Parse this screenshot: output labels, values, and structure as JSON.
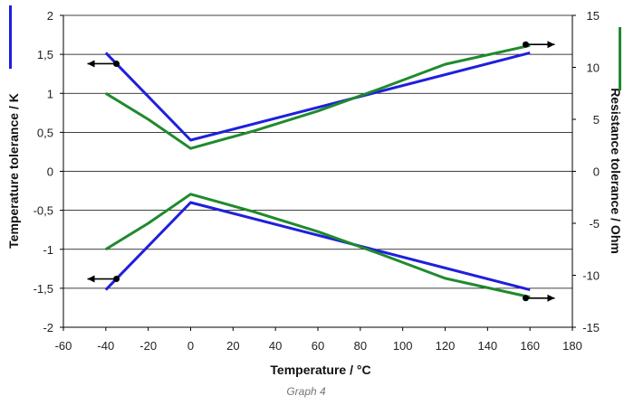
{
  "chart_data": {
    "type": "line",
    "caption": "Graph 4",
    "xlabel": "Temperature / °C",
    "ylabel_left": "Temperature tolerance / K",
    "ylabel_right": "Resistance tolerance / Ohm",
    "xlim": [
      -60,
      180
    ],
    "ylim_left": [
      -2,
      2
    ],
    "ylim_right": [
      -15,
      15
    ],
    "x_ticks": [
      "-60",
      "-40",
      "-20",
      "0",
      "20",
      "40",
      "60",
      "80",
      "100",
      "120",
      "140",
      "160",
      "180"
    ],
    "y_left_ticks": [
      "2",
      "1,5",
      "1",
      "0,5",
      "0",
      "-0,5",
      "-1",
      "-1,5",
      "-2"
    ],
    "y_right_ticks": [
      "15",
      "10",
      "5",
      "0",
      "-5",
      "-10",
      "-15"
    ],
    "grid": "horizontal",
    "colors": {
      "temperature": "#1f1fdc",
      "resistance": "#1f8a2e",
      "grid": "#000000",
      "arrows": "#000000"
    },
    "series": [
      {
        "axis": "left",
        "color": "#1f1fdc",
        "x": [
          -40,
          0,
          160
        ],
        "y": [
          1.52,
          0.4,
          1.52
        ]
      },
      {
        "axis": "left",
        "color": "#1f1fdc",
        "x": [
          -40,
          0,
          160
        ],
        "y": [
          -1.52,
          -0.4,
          -1.52
        ]
      },
      {
        "axis": "right",
        "color": "#1f8a2e",
        "x": [
          -40,
          -20,
          0,
          30,
          60,
          90,
          120,
          160
        ],
        "y": [
          7.5,
          5.0,
          2.2,
          3.9,
          5.8,
          8.0,
          10.3,
          12.1
        ]
      },
      {
        "axis": "right",
        "color": "#1f8a2e",
        "x": [
          -40,
          -20,
          0,
          30,
          60,
          90,
          120,
          160
        ],
        "y": [
          -7.5,
          -5.0,
          -2.2,
          -3.9,
          -5.8,
          -8.0,
          -10.3,
          -12.1
        ]
      }
    ],
    "axis_markers": [
      {
        "side": "left",
        "x": -35,
        "y": 1.38,
        "direction": "left"
      },
      {
        "side": "left",
        "x": -35,
        "y": -1.38,
        "direction": "left"
      },
      {
        "side": "right",
        "x": 158,
        "y": 12.2,
        "direction": "right"
      },
      {
        "side": "right",
        "x": 158,
        "y": -12.2,
        "direction": "right"
      }
    ]
  }
}
